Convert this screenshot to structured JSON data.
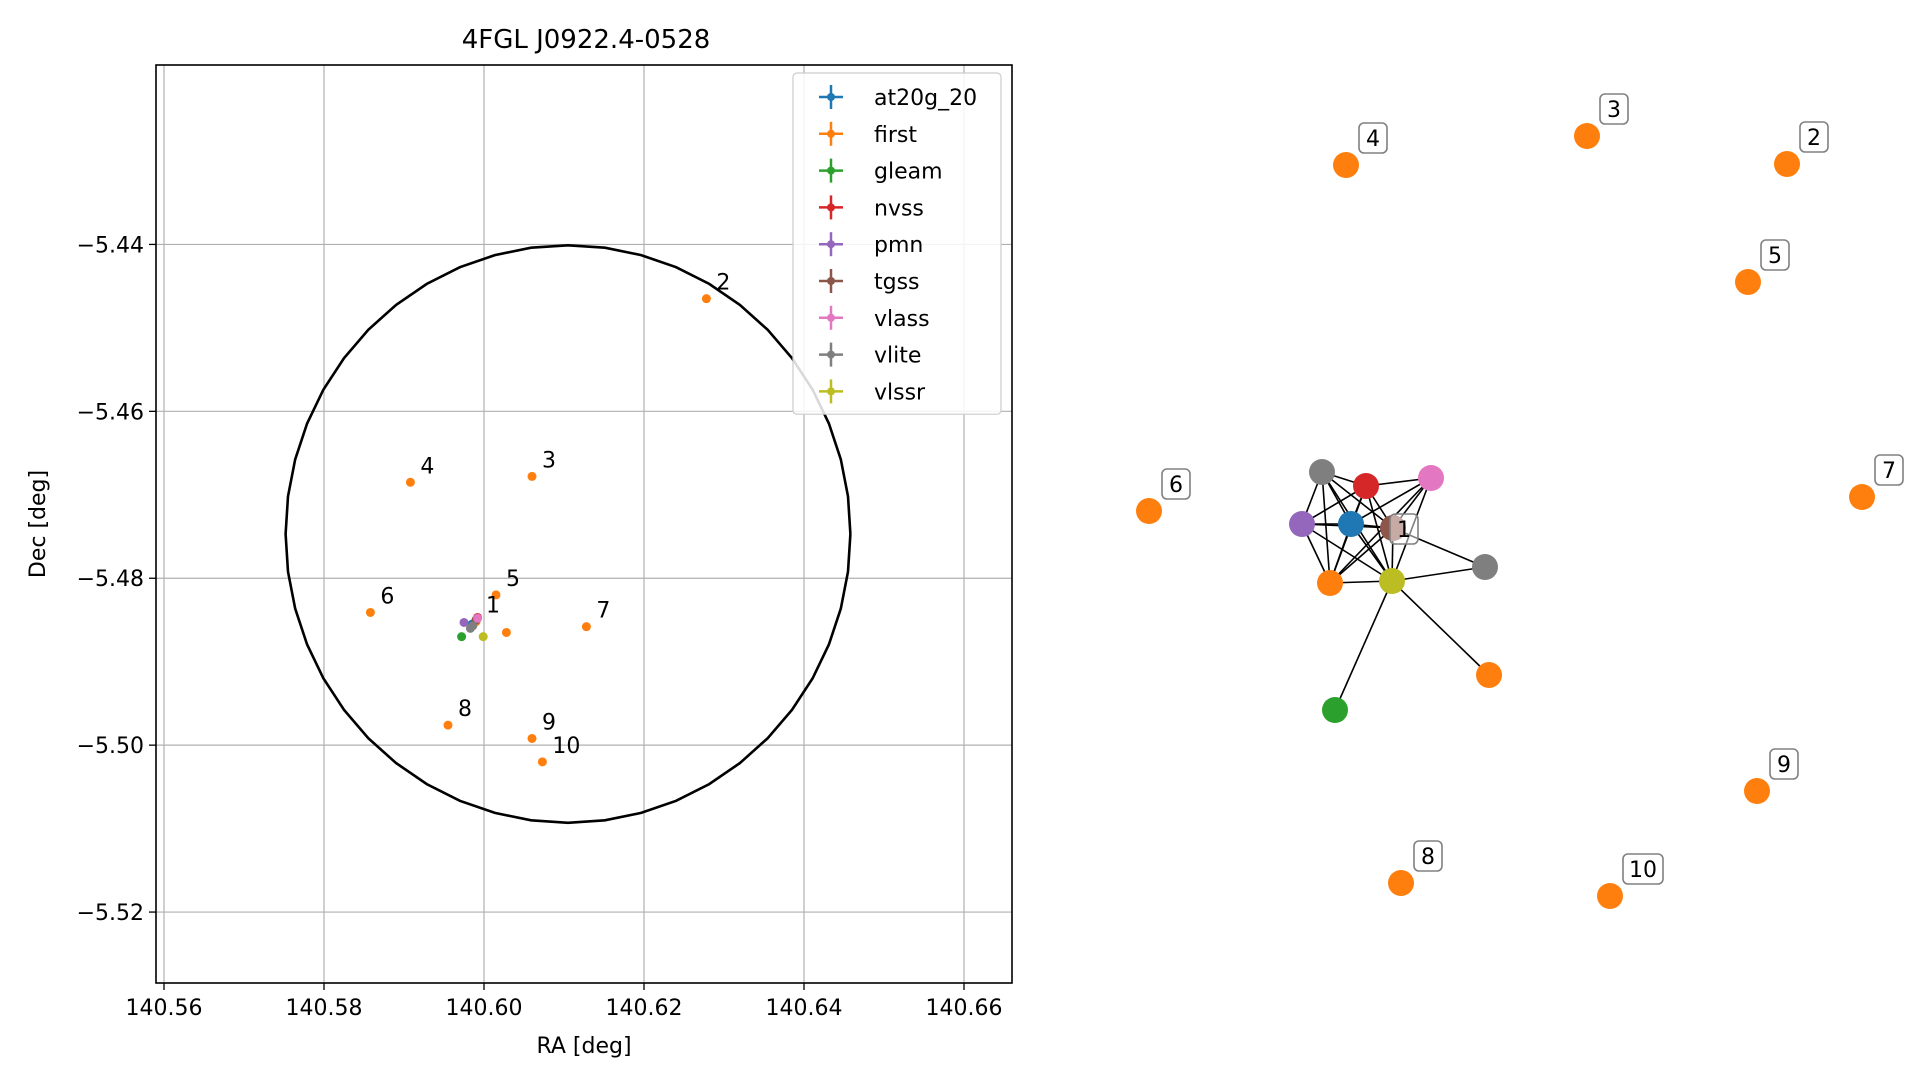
{
  "chart_data": [
    {
      "type": "scatter",
      "title": "4FGL J0922.4-0528",
      "xlabel": "RA [deg]",
      "ylabel": "Dec [deg]",
      "xlim": [
        140.559,
        140.666
      ],
      "ylim": [
        -5.5285,
        -5.4185
      ],
      "xticks": [
        140.56,
        140.58,
        140.6,
        140.62,
        140.64,
        140.66
      ],
      "xtick_labels": [
        "140.56",
        "140.58",
        "140.60",
        "140.62",
        "140.64",
        "140.66"
      ],
      "yticks": [
        -5.44,
        -5.46,
        -5.48,
        -5.5,
        -5.52
      ],
      "ytick_labels": [
        "−5.44",
        "−5.46",
        "−5.48",
        "−5.50",
        "−5.52"
      ],
      "grid": true,
      "legend_position": "top-right",
      "ellipse": {
        "center": [
          140.6105,
          -5.4747
        ],
        "rx": 0.0353,
        "ry": 0.0346
      },
      "series": [
        {
          "name": "at20g_20",
          "color": "#1f77b4",
          "points": [
            [
              140.5985,
              -5.4855
            ]
          ]
        },
        {
          "name": "first",
          "color": "#ff7f0e",
          "points": [
            [
              140.599,
              -5.4852
            ],
            [
              140.6278,
              -5.4465
            ],
            [
              140.606,
              -5.4678
            ],
            [
              140.5908,
              -5.4685
            ],
            [
              140.6015,
              -5.482
            ],
            [
              140.5858,
              -5.4841
            ],
            [
              140.6128,
              -5.4858
            ],
            [
              140.6028,
              -5.4865
            ],
            [
              140.5955,
              -5.4976
            ],
            [
              140.606,
              -5.4992
            ],
            [
              140.6073,
              -5.502
            ]
          ]
        },
        {
          "name": "gleam",
          "color": "#2ca02c",
          "points": [
            [
              140.5972,
              -5.487
            ]
          ]
        },
        {
          "name": "nvss",
          "color": "#d62728",
          "points": [
            [
              140.5992,
              -5.4847
            ]
          ]
        },
        {
          "name": "pmn",
          "color": "#9467bd",
          "points": [
            [
              140.5975,
              -5.4853
            ]
          ]
        },
        {
          "name": "tgss",
          "color": "#8c564b",
          "points": [
            [
              140.599,
              -5.485
            ]
          ]
        },
        {
          "name": "vlass",
          "color": "#e377c2",
          "points": [
            [
              140.5992,
              -5.4848
            ]
          ]
        },
        {
          "name": "vlite",
          "color": "#7f7f7f",
          "points": [
            [
              140.5983,
              -5.486
            ],
            [
              140.5986,
              -5.4857
            ]
          ]
        },
        {
          "name": "vlssr",
          "color": "#bcbd22",
          "points": [
            [
              140.5999,
              -5.487
            ]
          ]
        }
      ],
      "annotations": [
        {
          "text": "1",
          "x": 140.599,
          "y": -5.4852
        },
        {
          "text": "2",
          "x": 140.6278,
          "y": -5.4465
        },
        {
          "text": "3",
          "x": 140.606,
          "y": -5.4678
        },
        {
          "text": "4",
          "x": 140.5908,
          "y": -5.4685
        },
        {
          "text": "5",
          "x": 140.6015,
          "y": -5.482
        },
        {
          "text": "6",
          "x": 140.5858,
          "y": -5.4841
        },
        {
          "text": "7",
          "x": 140.6128,
          "y": -5.4858
        },
        {
          "text": "8",
          "x": 140.5955,
          "y": -5.4976
        },
        {
          "text": "9",
          "x": 140.606,
          "y": -5.4992
        },
        {
          "text": "10",
          "x": 140.6073,
          "y": -5.502
        }
      ]
    },
    {
      "type": "network",
      "nodes": [
        {
          "id": "n_vlite_a",
          "color": "#7f7f7f"
        },
        {
          "id": "n_nvss",
          "color": "#d62728"
        },
        {
          "id": "n_vlass",
          "color": "#e377c2"
        },
        {
          "id": "n_pmn",
          "color": "#9467bd"
        },
        {
          "id": "n_at20g",
          "color": "#1f77b4"
        },
        {
          "id": "n_tgss",
          "color": "#8c564b"
        },
        {
          "id": "n_first1",
          "color": "#ff7f0e"
        },
        {
          "id": "n_vlssr",
          "color": "#bcbd22"
        },
        {
          "id": "n_vlite_b",
          "color": "#7f7f7f"
        },
        {
          "id": "n_first_x",
          "color": "#ff7f0e"
        },
        {
          "id": "n_gleam",
          "color": "#2ca02c"
        },
        {
          "id": "n2",
          "color": "#ff7f0e",
          "label": "2"
        },
        {
          "id": "n3",
          "color": "#ff7f0e",
          "label": "3"
        },
        {
          "id": "n4",
          "color": "#ff7f0e",
          "label": "4"
        },
        {
          "id": "n5",
          "color": "#ff7f0e",
          "label": "5"
        },
        {
          "id": "n6",
          "color": "#ff7f0e",
          "label": "6"
        },
        {
          "id": "n7",
          "color": "#ff7f0e",
          "label": "7"
        },
        {
          "id": "n8",
          "color": "#ff7f0e",
          "label": "8"
        },
        {
          "id": "n9",
          "color": "#ff7f0e",
          "label": "9"
        },
        {
          "id": "n10",
          "color": "#ff7f0e",
          "label": "10"
        }
      ],
      "edges": [
        [
          "n_vlite_a",
          "n_nvss"
        ],
        [
          "n_vlite_a",
          "n_pmn"
        ],
        [
          "n_vlite_a",
          "n_at20g"
        ],
        [
          "n_vlite_a",
          "n_tgss"
        ],
        [
          "n_vlite_a",
          "n_vlssr"
        ],
        [
          "n_vlite_a",
          "n_first1"
        ],
        [
          "n_nvss",
          "n_vlass"
        ],
        [
          "n_nvss",
          "n_pmn"
        ],
        [
          "n_nvss",
          "n_at20g"
        ],
        [
          "n_nvss",
          "n_tgss"
        ],
        [
          "n_nvss",
          "n_first1"
        ],
        [
          "n_nvss",
          "n_vlssr"
        ],
        [
          "n_vlass",
          "n_at20g"
        ],
        [
          "n_vlass",
          "n_tgss"
        ],
        [
          "n_vlass",
          "n_vlssr"
        ],
        [
          "n_vlass",
          "n_first1"
        ],
        [
          "n_pmn",
          "n_at20g"
        ],
        [
          "n_pmn",
          "n_tgss"
        ],
        [
          "n_pmn",
          "n_first1"
        ],
        [
          "n_pmn",
          "n_vlssr"
        ],
        [
          "n_at20g",
          "n_tgss"
        ],
        [
          "n_at20g",
          "n_first1"
        ],
        [
          "n_at20g",
          "n_vlssr"
        ],
        [
          "n_tgss",
          "n_first1"
        ],
        [
          "n_tgss",
          "n_vlssr"
        ],
        [
          "n_tgss",
          "n_vlite_b"
        ],
        [
          "n_first1",
          "n_vlssr"
        ],
        [
          "n_vlssr",
          "n_vlite_b"
        ],
        [
          "n_vlssr",
          "n_first_x"
        ],
        [
          "n_vlssr",
          "n_gleam"
        ]
      ],
      "cluster_label": "1"
    }
  ]
}
